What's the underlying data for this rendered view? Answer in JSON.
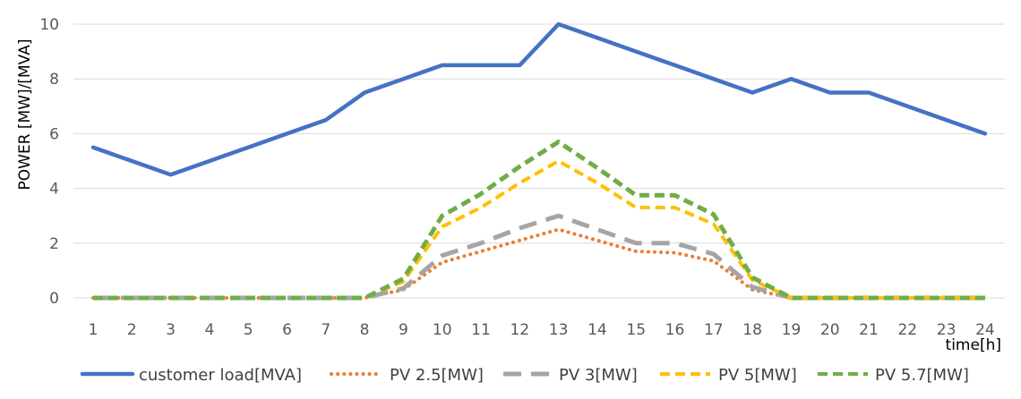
{
  "chart_data": {
    "type": "line",
    "title": "",
    "ylabel": "POWER [MW]/[MVA]",
    "xlabel": "time[h]",
    "ylim": [
      0,
      10
    ],
    "yticks": [
      0,
      2,
      4,
      6,
      8,
      10
    ],
    "grid": true,
    "legend_position": "bottom",
    "categories": [
      "1",
      "2",
      "3",
      "4",
      "5",
      "6",
      "7",
      "8",
      "9",
      "10",
      "11",
      "12",
      "13",
      "14",
      "15",
      "16",
      "17",
      "18",
      "19",
      "20",
      "21",
      "22",
      "23",
      "24"
    ],
    "series": [
      {
        "name": "customer load[MVA]",
        "color": "#4472C4",
        "dash": "solid",
        "values": [
          5.5,
          5.0,
          4.5,
          5.0,
          5.5,
          6.0,
          6.5,
          7.5,
          8.0,
          8.5,
          8.5,
          8.5,
          10.0,
          9.5,
          9.0,
          8.5,
          8.0,
          7.5,
          8.0,
          7.5,
          7.5,
          7.0,
          6.5,
          6.0
        ]
      },
      {
        "name": "PV 2.5[MW]",
        "color": "#ED7D31",
        "dash": "dot",
        "values": [
          0,
          0,
          0,
          0,
          0,
          0,
          0,
          0,
          0.3,
          1.3,
          1.7,
          2.1,
          2.5,
          2.1,
          1.7,
          1.65,
          1.35,
          0.3,
          0,
          0,
          0,
          0,
          0,
          0
        ]
      },
      {
        "name": "PV 3[MW]",
        "color": "#A5A5A5",
        "dash": "longdash",
        "values": [
          0,
          0,
          0,
          0,
          0,
          0,
          0,
          0,
          0.35,
          1.55,
          2.0,
          2.55,
          3.0,
          2.5,
          2.0,
          2.0,
          1.6,
          0.4,
          0,
          0,
          0,
          0,
          0,
          0
        ]
      },
      {
        "name": "PV 5[MW]",
        "color": "#FFC000",
        "dash": "dash",
        "values": [
          0,
          0,
          0,
          0,
          0,
          0,
          0,
          0,
          0.6,
          2.6,
          3.3,
          4.2,
          5.0,
          4.2,
          3.3,
          3.3,
          2.7,
          0.65,
          0,
          0,
          0,
          0,
          0,
          0
        ]
      },
      {
        "name": "PV 5.7[MW]",
        "color": "#70AD47",
        "dash": "dash",
        "values": [
          0,
          0,
          0,
          0,
          0,
          0,
          0,
          0,
          0.7,
          3.0,
          3.8,
          4.8,
          5.7,
          4.75,
          3.75,
          3.75,
          3.05,
          0.75,
          0,
          0,
          0,
          0,
          0,
          0
        ]
      }
    ]
  }
}
